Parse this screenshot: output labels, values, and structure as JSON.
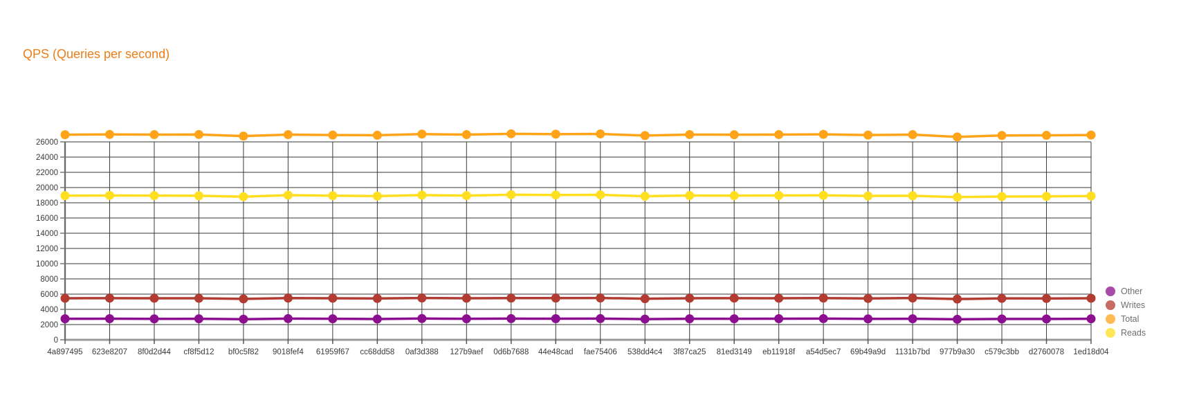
{
  "header": {
    "title": "QPS (Queries per second)",
    "title_color": "#ed7d17"
  },
  "chart_data": {
    "type": "line",
    "title": "QPS (Queries per second)",
    "xlabel": "",
    "ylabel": "",
    "grid": true,
    "legend_position": "right",
    "ylim": [
      0,
      27800
    ],
    "yticks": [
      0,
      2000,
      4000,
      6000,
      8000,
      10000,
      12000,
      14000,
      16000,
      18000,
      20000,
      22000,
      24000,
      26000
    ],
    "categories": [
      "4a897495",
      "623e8207",
      "8f0d2d44",
      "cf8f5d12",
      "bf0c5f82",
      "9018fef4",
      "61959f67",
      "cc68dd58",
      "0af3d388",
      "127b9aef",
      "0d6b7688",
      "44e48cad",
      "fae75406",
      "538dd4c4",
      "3f87ca25",
      "81ed3149",
      "eb11918f",
      "a54d5ec7",
      "69b49a9d",
      "1131b7bd",
      "977b9a30",
      "c579c3bb",
      "d2760078",
      "1ed18d04"
    ],
    "series": [
      {
        "name": "Other",
        "color": "#8b0f8f",
        "values": [
          2760,
          2770,
          2750,
          2760,
          2710,
          2780,
          2760,
          2730,
          2790,
          2760,
          2780,
          2770,
          2780,
          2720,
          2760,
          2760,
          2770,
          2780,
          2750,
          2760,
          2690,
          2740,
          2740,
          2760
        ]
      },
      {
        "name": "Writes",
        "color": "#b23b32",
        "values": [
          5460,
          5470,
          5460,
          5450,
          5370,
          5480,
          5460,
          5430,
          5490,
          5460,
          5480,
          5480,
          5490,
          5400,
          5460,
          5470,
          5460,
          5480,
          5430,
          5490,
          5350,
          5440,
          5430,
          5460
        ]
      },
      {
        "name": "Total",
        "color": "#ffa319",
        "values": [
          26940,
          26980,
          26950,
          26970,
          26760,
          26950,
          26900,
          26870,
          27020,
          26950,
          27060,
          27010,
          27040,
          26830,
          26960,
          26940,
          26960,
          26990,
          26900,
          26950,
          26650,
          26840,
          26860,
          26900
        ]
      },
      {
        "name": "Reads",
        "color": "#ffdf20",
        "values": [
          18930,
          18960,
          18940,
          18920,
          18800,
          19000,
          18930,
          18880,
          19010,
          18940,
          19060,
          19020,
          19040,
          18860,
          18950,
          18940,
          18960,
          18980,
          18900,
          18920,
          18740,
          18820,
          18840,
          18890
        ]
      }
    ],
    "colors": {
      "grid_horizontal": "#9a9a9a",
      "grid_vertical": "#3a3a3a",
      "axis": "#9a9a9a",
      "tick_text": "#3b3b3b",
      "legend_text": "#6e6e6e"
    }
  }
}
